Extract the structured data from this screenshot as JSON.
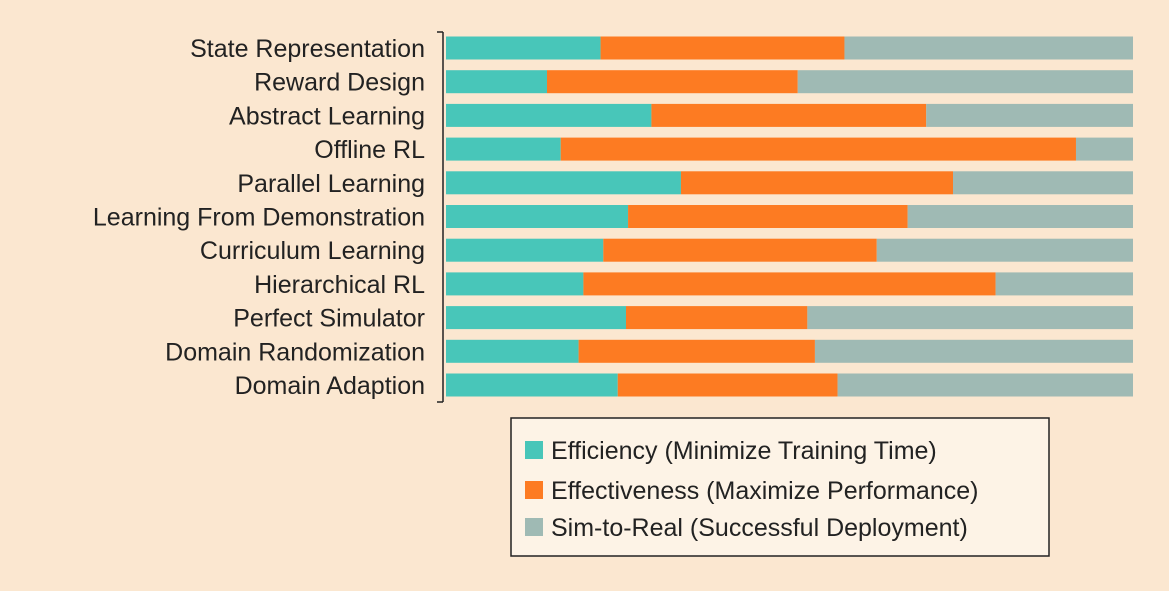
{
  "chart_data": {
    "type": "bar",
    "orientation": "horizontal",
    "stacked": true,
    "normalized": true,
    "categories": [
      "State Representation",
      "Reward Design",
      "Abstract Learning",
      "Offline RL",
      "Parallel Learning",
      "Learning From Demonstration",
      "Curriculum Learning",
      "Hierarchical RL",
      "Perfect Simulator",
      "Domain Randomization",
      "Domain Adaption"
    ],
    "series": [
      {
        "name": "Efficiency (Minimize Training Time)",
        "color": "#48c6b9",
        "values": [
          0.225,
          0.147,
          0.299,
          0.167,
          0.342,
          0.265,
          0.229,
          0.2,
          0.262,
          0.193,
          0.25
        ]
      },
      {
        "name": "Effectiveness (Maximize Performance)",
        "color": "#fd7b22",
        "values": [
          0.355,
          0.365,
          0.4,
          0.75,
          0.396,
          0.407,
          0.398,
          0.6,
          0.264,
          0.344,
          0.32
        ]
      },
      {
        "name": "Sim-to-Real (Successful Deployment)",
        "color": "#9fbab4",
        "values": [
          0.42,
          0.488,
          0.301,
          0.083,
          0.262,
          0.328,
          0.373,
          0.2,
          0.474,
          0.463,
          0.43
        ]
      }
    ],
    "xlim": [
      0,
      1
    ],
    "legend": "bottom-center",
    "grid": false
  }
}
